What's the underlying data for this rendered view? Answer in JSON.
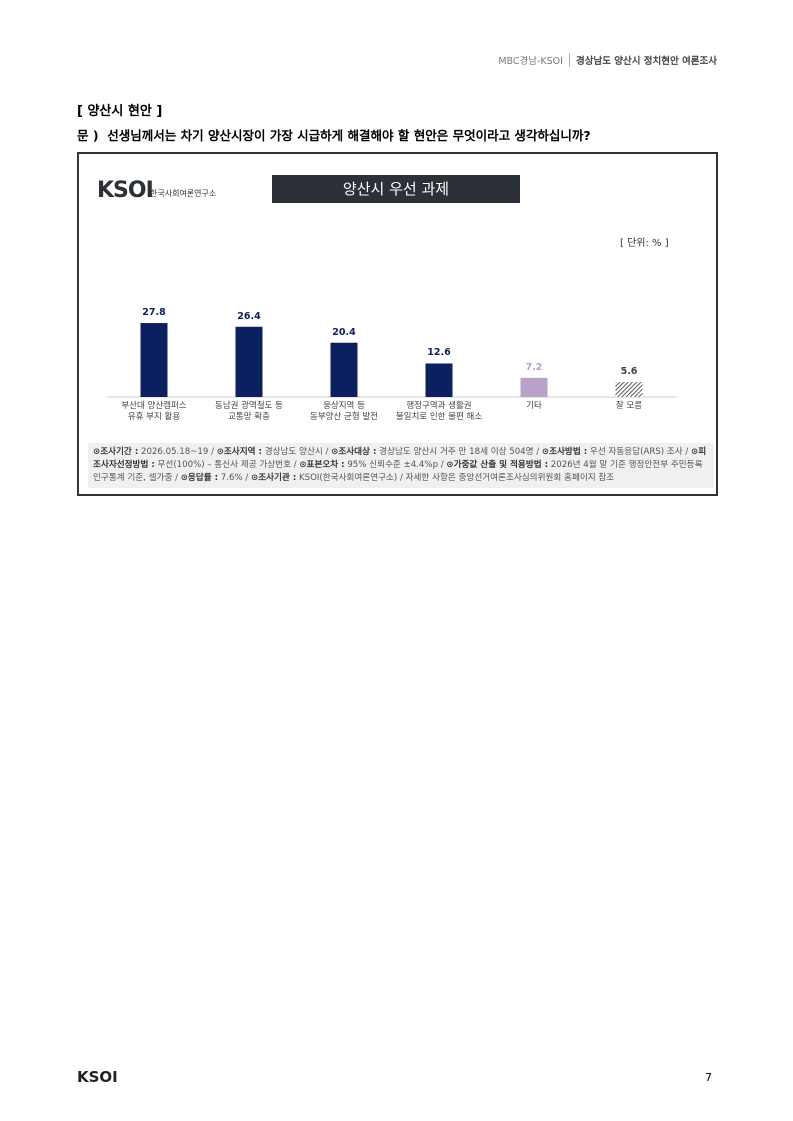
{
  "header": {
    "source": "MBC경남-KSOI",
    "title": "경상남도 양산시 정치현안 여론조사"
  },
  "section_title": "[ 양산시 현안 ]",
  "question": "문 )  선생님께서는 차기 양산시장이 가장 시급하게 해결해야 할 현안은 무엇이라고 생각하십니까?",
  "chart_data": {
    "type": "bar",
    "logo": "KSOI",
    "logo_sub": "한국사회여론연구소",
    "title": "양산시 우선 과제",
    "unit": "[ 단위: % ]",
    "categories": [
      "부산대 양산캠퍼스\n유휴 부지 활용",
      "동남권 광역철도 등\n교통망 확충",
      "웅상지역 등\n동부양산 균형 발전",
      "행정구역과 생활권\n불일치로 인한 불편 해소",
      "기타",
      "잘 모름"
    ],
    "values": [
      27.8,
      26.4,
      20.4,
      12.6,
      7.2,
      5.6
    ],
    "colors": [
      "#0c1f5e",
      "#0c1f5e",
      "#0c1f5e",
      "#0c1f5e",
      "#b9a2c9",
      "#555555"
    ],
    "hatched": [
      false,
      false,
      false,
      false,
      false,
      true
    ],
    "notes": [
      {
        "label": "⊙조사기간 :",
        "text": " 2026.05.18~19 / "
      },
      {
        "label": "⊙조사지역 :",
        "text": " 경상남도 양산시 / "
      },
      {
        "label": "⊙조사대상 :",
        "text": " 경상남도 양산시 거주 만 18세 이상 504명 / "
      },
      {
        "label": "⊙조사방법 :",
        "text": " 우선 자동응답(ARS) 조사 / "
      },
      {
        "label": "⊙피조사자선정방법 :",
        "text": " 무선(100%) – 통신사 제공 가상번호 / "
      },
      {
        "label": "⊙표본오차 :",
        "text": " 95% 신뢰수준 ±4.4%p / "
      },
      {
        "label": "⊙가중값 산출 및 적용방법 :",
        "text": " 2026년 4월 말 기준 행정안전부 주민등록 인구통계 기준, 셀가중 / "
      },
      {
        "label": "⊙응답률 :",
        "text": " 7.6% / "
      },
      {
        "label": "⊙조사기관 :",
        "text": " KSOI(한국사회여론연구소) / 자세한 사항은 중앙선거여론조사심의위원회 홈페이지 참조"
      }
    ]
  },
  "footer": {
    "logo": "KSOI",
    "page": "7"
  }
}
